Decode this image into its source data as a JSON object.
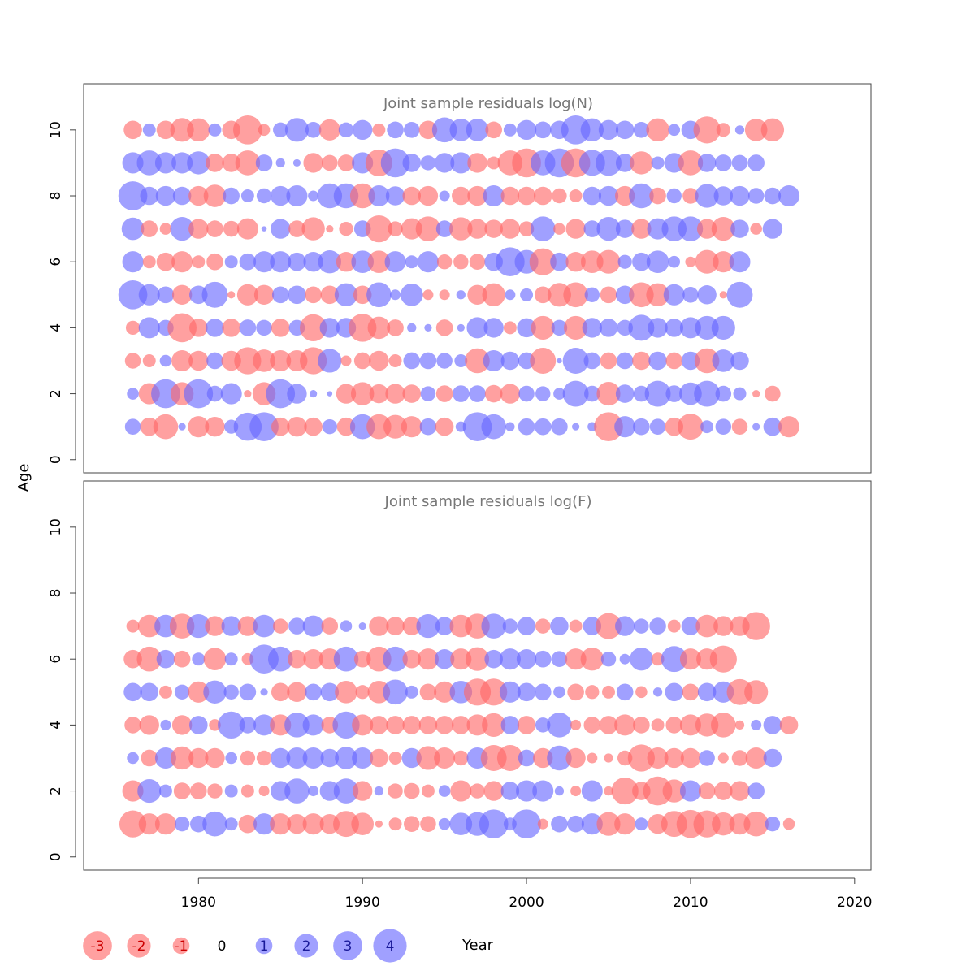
{
  "chart_data": {
    "type": "bubble",
    "x_ticks": [
      1980,
      1990,
      2000,
      2010,
      2020
    ],
    "y_ticks": [
      0,
      2,
      4,
      6,
      8,
      10
    ],
    "xlabel": "Year",
    "ylabel": "Age",
    "xlim": [
      1973,
      2021
    ],
    "ylim": [
      -0.4,
      11.4
    ],
    "colors": {
      "negative": "#ff6666",
      "positive": "#6666ff"
    },
    "legend": {
      "items": [
        {
          "label": "-3",
          "value": -3
        },
        {
          "label": "-2",
          "value": -2
        },
        {
          "label": "-1",
          "value": -1
        },
        {
          "label": "0",
          "value": 0
        },
        {
          "label": "1",
          "value": 1
        },
        {
          "label": "2",
          "value": 2
        },
        {
          "label": "3",
          "value": 3
        },
        {
          "label": "4",
          "value": 4
        }
      ]
    },
    "panels": [
      {
        "title": "Joint sample residuals log(N)",
        "ages": [
          1,
          2,
          3,
          4,
          5,
          6,
          7,
          8,
          9,
          10
        ],
        "years_start": 1976,
        "residuals": {
          "1": [
            0.9,
            -1.2,
            -2.2,
            0.2,
            -1.6,
            -1.4,
            0.7,
            2.8,
            3.0,
            -1.2,
            -1.4,
            -1.2,
            0.8,
            -1.2,
            2.2,
            -2.2,
            -2.0,
            -1.6,
            1.0,
            -1.2,
            0.4,
            3.0,
            2.2,
            0.3,
            1.0,
            1.0,
            1.0,
            0.2,
            0.3,
            -3.0,
            1.6,
            1.0,
            0.9,
            -1.2,
            -2.4,
            0.6,
            0.9,
            -0.9,
            0.2,
            1.2,
            -1.6
          ],
          "2": [
            0.5,
            -1.6,
            3.0,
            -1.9,
            3.0,
            0.9,
            1.6,
            -0.2,
            -1.9,
            3.0,
            1.4,
            0.2,
            0.1,
            -1.4,
            -1.9,
            -1.3,
            -1.4,
            -1.2,
            0.8,
            -1.0,
            1.0,
            1.0,
            -1.1,
            -1.4,
            0.9,
            0.8,
            0.5,
            2.4,
            0.9,
            -2.0,
            1.2,
            0.9,
            2.4,
            1.0,
            1.8,
            2.4,
            0.9,
            0.6,
            -0.2,
            -0.9
          ],
          "3": [
            -0.9,
            -0.6,
            0.5,
            -1.6,
            -1.4,
            1.0,
            -1.4,
            -2.6,
            -1.8,
            -1.6,
            -1.6,
            -2.6,
            2.0,
            -0.4,
            -1.0,
            -1.4,
            -0.6,
            1.0,
            1.0,
            0.9,
            0.6,
            -2.2,
            1.6,
            1.2,
            1.0,
            -2.4,
            0.1,
            2.4,
            1.0,
            -1.0,
            1.0,
            -1.2,
            1.2,
            -1.0,
            1.2,
            -2.2,
            1.8,
            1.2
          ],
          "4": [
            -0.7,
            1.6,
            0.9,
            -3.0,
            -1.2,
            1.2,
            -1.2,
            1.0,
            0.9,
            -1.2,
            0.9,
            -2.6,
            1.4,
            1.4,
            -2.8,
            -1.8,
            -1.0,
            0.3,
            0.2,
            -1.0,
            0.2,
            1.6,
            1.4,
            -0.6,
            1.3,
            -2.0,
            0.9,
            -2.0,
            1.4,
            1.2,
            0.9,
            2.4,
            1.4,
            1.2,
            1.6,
            2.0,
            2.0
          ],
          "5": [
            3.0,
            1.6,
            1.0,
            -1.4,
            1.2,
            2.4,
            -0.2,
            -1.6,
            -1.4,
            1.0,
            1.2,
            -1.0,
            -1.2,
            1.9,
            -1.2,
            2.2,
            0.4,
            1.8,
            -0.4,
            -0.4,
            0.3,
            -1.4,
            -1.9,
            0.4,
            0.6,
            -1.0,
            -2.0,
            -2.2,
            0.8,
            -1.0,
            1.2,
            -2.2,
            -1.9,
            1.6,
            0.9,
            1.3,
            -0.2,
            2.4
          ],
          "6": [
            1.6,
            -0.6,
            -1.2,
            -1.6,
            -0.6,
            -1.0,
            0.6,
            1.0,
            1.6,
            1.6,
            1.2,
            1.4,
            1.9,
            -1.4,
            1.8,
            -1.8,
            1.6,
            0.6,
            1.6,
            -0.8,
            -0.8,
            -0.9,
            1.2,
            3.0,
            2.0,
            -2.6,
            1.2,
            -1.4,
            -1.8,
            -2.0,
            0.7,
            1.2,
            1.8,
            0.5,
            -0.4,
            -2.0,
            -1.6,
            1.6
          ],
          "7": [
            1.8,
            -1.0,
            -0.5,
            2.0,
            -1.4,
            -1.0,
            -0.9,
            -1.6,
            0.1,
            1.4,
            -1.0,
            -1.9,
            -0.2,
            -0.7,
            1.0,
            -2.6,
            -0.8,
            -1.6,
            -2.2,
            1.0,
            -1.9,
            -1.4,
            -1.2,
            -1.4,
            -0.8,
            2.2,
            -0.5,
            -1.4,
            1.0,
            2.0,
            1.2,
            -1.4,
            1.6,
            2.2,
            2.2,
            -1.4,
            -2.0,
            1.2,
            -0.5,
            1.4
          ],
          "8": [
            3.0,
            1.2,
            1.4,
            1.2,
            -1.4,
            -1.8,
            1.0,
            0.6,
            0.8,
            1.4,
            1.6,
            0.4,
            2.2,
            2.2,
            -2.2,
            1.6,
            1.3,
            -1.2,
            -1.4,
            0.4,
            -1.2,
            -1.4,
            1.6,
            -1.2,
            -1.2,
            -1.2,
            -0.8,
            -0.6,
            1.2,
            1.4,
            -1.4,
            2.2,
            -1.0,
            0.8,
            -0.9,
            2.0,
            1.3,
            1.4,
            0.9,
            1.0,
            1.6
          ],
          "9": [
            1.6,
            2.2,
            1.6,
            1.6,
            1.9,
            -1.2,
            -1.2,
            -2.2,
            1.0,
            0.3,
            0.2,
            -1.4,
            -0.9,
            -1.0,
            1.6,
            -2.6,
            3.0,
            1.2,
            0.8,
            1.4,
            1.6,
            -1.4,
            -0.6,
            -2.2,
            -3.0,
            2.2,
            3.0,
            -3.0,
            2.4,
            2.4,
            1.2,
            -1.9,
            0.6,
            1.4,
            -2.2,
            1.2,
            1.0,
            0.9,
            1.0
          ],
          "10": [
            -1.2,
            0.6,
            -1.2,
            -2.0,
            -1.9,
            0.6,
            -1.2,
            -3.0,
            -0.5,
            0.8,
            2.0,
            0.9,
            -1.6,
            0.8,
            1.4,
            -0.6,
            1.0,
            0.9,
            -1.2,
            2.2,
            1.8,
            1.8,
            -1.0,
            0.6,
            1.4,
            1.0,
            1.2,
            3.0,
            1.9,
            1.4,
            1.2,
            0.9,
            -1.9,
            0.5,
            1.2,
            -2.6,
            -0.7,
            0.3,
            -1.8,
            -1.9
          ]
        }
      },
      {
        "title": "Joint sample residuals log(F)",
        "ages": [
          1,
          2,
          3,
          4,
          5,
          6,
          7
        ],
        "years_start": 1976,
        "residuals": {
          "1": [
            -2.6,
            -1.6,
            -1.6,
            0.8,
            1.0,
            2.2,
            0.6,
            -1.2,
            1.6,
            -1.6,
            -1.4,
            -1.6,
            -1.4,
            -2.4,
            -1.8,
            -0.2,
            -0.6,
            -0.9,
            -0.9,
            0.5,
            1.8,
            2.0,
            3.0,
            0.6,
            3.0,
            -0.4,
            1.0,
            1.0,
            1.6,
            -2.0,
            -1.6,
            0.6,
            -1.4,
            -2.4,
            -2.8,
            -2.6,
            -1.9,
            -1.6,
            -2.2,
            0.8,
            -0.5
          ],
          "2": [
            -1.6,
            2.0,
            0.6,
            -1.0,
            -1.0,
            -0.8,
            0.6,
            -0.6,
            -0.4,
            1.4,
            2.2,
            0.4,
            1.4,
            2.2,
            -1.4,
            0.3,
            -0.8,
            -0.9,
            -0.6,
            0.5,
            -1.6,
            -0.8,
            -1.4,
            1.2,
            1.6,
            1.6,
            0.3,
            -0.4,
            1.6,
            -0.3,
            -2.6,
            -1.2,
            -3.0,
            -1.9,
            1.6,
            -1.0,
            -1.2,
            -1.4,
            1.0
          ],
          "3": [
            0.5,
            -1.0,
            1.6,
            -1.9,
            -1.4,
            -1.4,
            0.5,
            -0.8,
            -0.8,
            1.4,
            1.6,
            1.6,
            1.2,
            1.8,
            1.6,
            -1.2,
            -0.6,
            1.4,
            -2.0,
            -1.6,
            -0.8,
            1.6,
            -2.4,
            -2.4,
            1.0,
            -1.4,
            2.2,
            -1.4,
            -0.4,
            -0.3,
            -0.8,
            -2.6,
            -1.6,
            -1.4,
            -1.4,
            0.9,
            -0.4,
            -0.9,
            -1.6,
            1.2
          ],
          "4": [
            -1.0,
            -1.4,
            0.4,
            -1.4,
            1.2,
            -0.5,
            2.6,
            1.0,
            1.6,
            -1.6,
            2.2,
            1.6,
            -1.0,
            2.6,
            -1.6,
            -1.2,
            -1.2,
            -1.2,
            -1.2,
            -1.2,
            -1.2,
            -1.6,
            -2.0,
            1.2,
            -1.2,
            0.8,
            2.2,
            -0.4,
            -1.0,
            -1.2,
            -1.6,
            -1.0,
            -0.6,
            -1.0,
            -1.6,
            -1.9,
            -2.2,
            -0.3,
            0.4,
            1.2,
            -1.2
          ],
          "5": [
            1.2,
            1.2,
            -0.6,
            0.8,
            -1.6,
            1.9,
            0.8,
            1.0,
            0.2,
            -1.2,
            -1.4,
            1.0,
            1.2,
            -1.8,
            -0.7,
            -1.8,
            2.2,
            0.6,
            -1.0,
            -1.6,
            1.8,
            -2.6,
            -2.6,
            1.6,
            1.2,
            1.0,
            0.5,
            -1.0,
            -0.7,
            -0.6,
            1.0,
            -0.5,
            0.3,
            1.2,
            -1.0,
            1.2,
            1.6,
            -2.4,
            -2.0
          ],
          "6": [
            -1.2,
            -2.2,
            1.2,
            -1.0,
            0.6,
            -1.8,
            0.6,
            -0.5,
            3.0,
            2.2,
            -1.2,
            -1.4,
            -1.6,
            2.2,
            -1.0,
            -2.2,
            2.2,
            -1.2,
            -1.6,
            1.4,
            -1.6,
            -2.0,
            1.2,
            1.6,
            1.4,
            1.0,
            0.9,
            -1.6,
            -1.9,
            0.8,
            0.4,
            1.9,
            -0.6,
            2.4,
            -1.6,
            -1.6,
            -2.6
          ],
          "7": [
            -0.6,
            -1.8,
            1.8,
            -2.2,
            2.0,
            -1.4,
            1.4,
            -1.4,
            1.8,
            -0.8,
            1.0,
            1.6,
            -1.0,
            0.5,
            0.2,
            -1.4,
            -1.2,
            -1.2,
            2.0,
            1.2,
            -1.8,
            -2.2,
            2.2,
            0.8,
            1.2,
            -0.8,
            1.2,
            -0.6,
            1.2,
            -2.4,
            1.4,
            0.8,
            1.0,
            -0.6,
            1.2,
            -1.8,
            -1.4,
            -1.4,
            -2.8
          ]
        }
      }
    ]
  }
}
